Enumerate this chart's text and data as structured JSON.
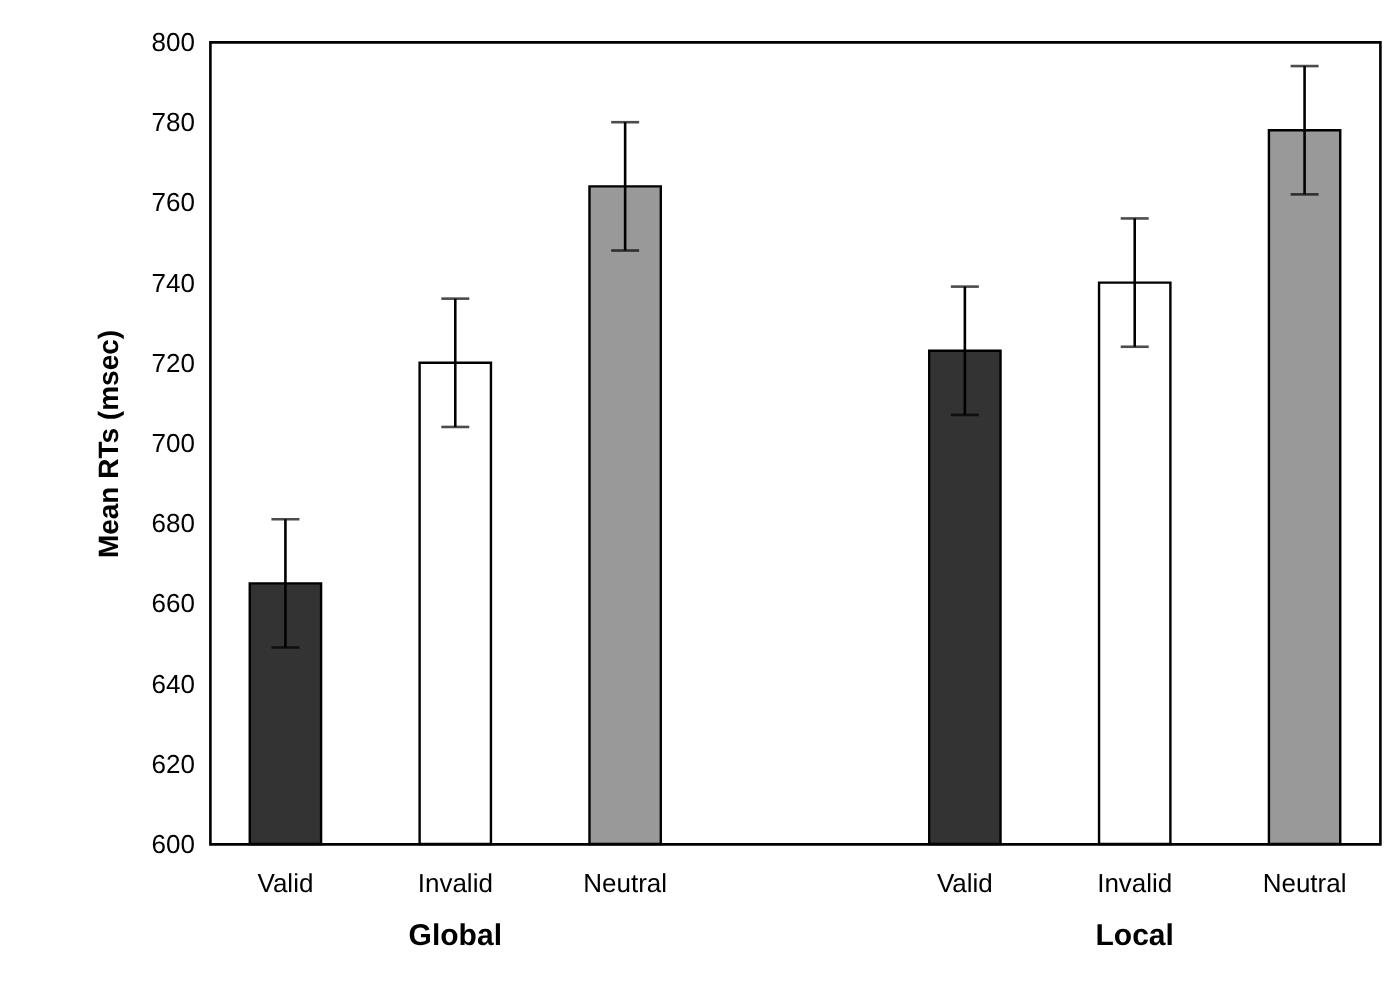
{
  "chart_data": {
    "type": "bar",
    "ylabel": "Mean RTs (msec)",
    "categories": [
      "Global",
      "Local"
    ],
    "series": [
      {
        "name": "Valid",
        "color": "#333333",
        "values": [
          665,
          723
        ],
        "errors": [
          16,
          16
        ]
      },
      {
        "name": "Invalid",
        "color": "#ffffff",
        "values": [
          720,
          740
        ],
        "errors": [
          16,
          16
        ]
      },
      {
        "name": "Neutral",
        "color": "#999999",
        "values": [
          764,
          778
        ],
        "errors": [
          16,
          16
        ]
      }
    ],
    "ylim": [
      600,
      800
    ],
    "yticks": [
      600,
      620,
      640,
      660,
      680,
      700,
      720,
      740,
      760,
      780,
      800
    ],
    "grid": false,
    "legend": false
  }
}
